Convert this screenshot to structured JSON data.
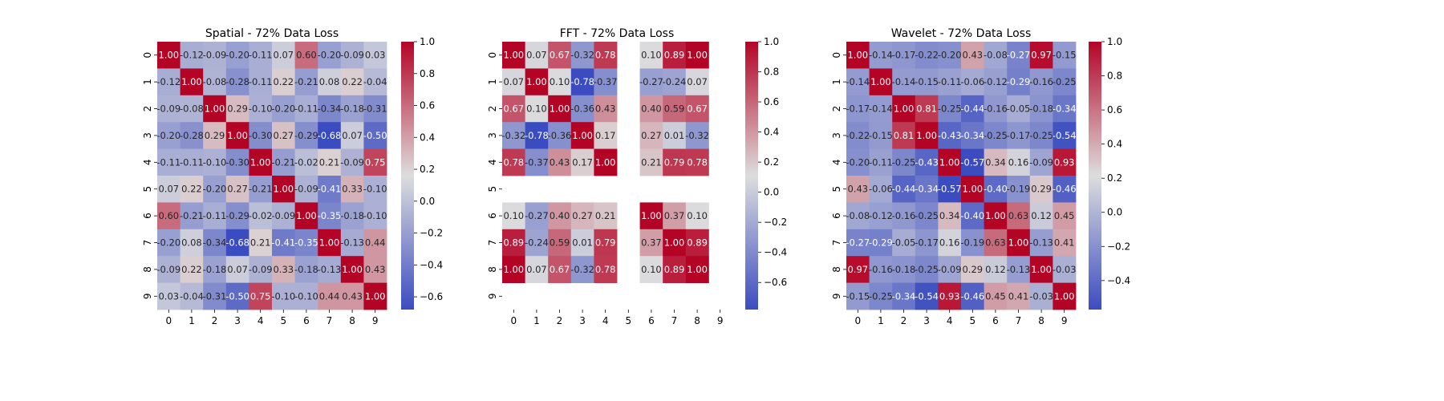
{
  "figure": {
    "background": "#ffffff"
  },
  "colormap": {
    "name": "coolwarm",
    "low": "#3b4cc0",
    "mid": "#dddddd",
    "high": "#b40426"
  },
  "chart_data": [
    {
      "type": "heatmap",
      "title": "Spatial - 72% Data Loss",
      "xlabel": "",
      "ylabel": "",
      "x_labels": [
        "0",
        "1",
        "2",
        "3",
        "4",
        "5",
        "6",
        "7",
        "8",
        "9"
      ],
      "y_labels": [
        "0",
        "1",
        "2",
        "3",
        "4",
        "5",
        "6",
        "7",
        "8",
        "9"
      ],
      "vmin": -0.68,
      "vmax": 1.0,
      "colorbar_ticks": [
        "1.0",
        "0.8",
        "0.6",
        "0.4",
        "0.2",
        "0.0",
        "−0.2",
        "−0.4",
        "−0.6"
      ],
      "cell_labels": [
        [
          "1.00",
          "-0.12",
          "-0.09",
          "-0.20",
          "-0.11",
          "0.07",
          "0.60",
          "-0.20",
          "-0.09",
          "0.03"
        ],
        [
          "-0.12",
          "1.00",
          "-0.08",
          "-0.28",
          "-0.11",
          "0.22",
          "-0.21",
          "0.08",
          "0.22",
          "-0.04"
        ],
        [
          "-0.09",
          "-0.08",
          "1.00",
          "0.29",
          "-0.10",
          "-0.20",
          "-0.11",
          "-0.34",
          "-0.18",
          "-0.31"
        ],
        [
          "-0.20",
          "-0.28",
          "0.29",
          "1.00",
          "-0.30",
          "0.27",
          "-0.29",
          "-0.68",
          "0.07",
          "-0.50"
        ],
        [
          "-0.11",
          "-0.11",
          "-0.10",
          "-0.30",
          "1.00",
          "-0.21",
          "-0.02",
          "0.21",
          "-0.09",
          "0.75"
        ],
        [
          "0.07",
          "0.22",
          "-0.20",
          "0.27",
          "-0.21",
          "1.00",
          "-0.09",
          "-0.41",
          "0.33",
          "-0.10"
        ],
        [
          "0.60",
          "-0.21",
          "-0.11",
          "-0.29",
          "-0.02",
          "-0.09",
          "1.00",
          "-0.35",
          "-0.18",
          "-0.10"
        ],
        [
          "-0.20",
          "0.08",
          "-0.34",
          "-0.68",
          "0.21",
          "-0.41",
          "-0.35",
          "1.00",
          "-0.13",
          "0.44"
        ],
        [
          "-0.09",
          "0.22",
          "-0.18",
          "0.07",
          "-0.09",
          "0.33",
          "-0.18",
          "-0.13",
          "1.00",
          "0.43"
        ],
        [
          "0.03",
          "-0.04",
          "-0.31",
          "-0.50",
          "0.75",
          "-0.10",
          "-0.10",
          "0.44",
          "0.43",
          "1.00"
        ]
      ]
    },
    {
      "type": "heatmap",
      "title": "FFT - 72% Data Loss",
      "xlabel": "",
      "ylabel": "",
      "x_labels": [
        "0",
        "1",
        "2",
        "3",
        "4",
        "5",
        "6",
        "7",
        "8",
        "9"
      ],
      "y_labels": [
        "0",
        "1",
        "2",
        "3",
        "4",
        "5",
        "6",
        "7",
        "8",
        "9"
      ],
      "vmin": -0.78,
      "vmax": 1.0,
      "colorbar_ticks": [
        "1.0",
        "0.8",
        "0.6",
        "0.4",
        "0.2",
        "0.0",
        "−0.2",
        "−0.4",
        "−0.6"
      ],
      "cell_labels": [
        [
          "1.00",
          "0.07",
          "0.67",
          "-0.32",
          "0.78",
          "",
          "0.10",
          "0.89",
          "1.00",
          ""
        ],
        [
          "0.07",
          "1.00",
          "0.10",
          "-0.78",
          "-0.37",
          "",
          "-0.27",
          "-0.24",
          "0.07",
          ""
        ],
        [
          "0.67",
          "0.10",
          "1.00",
          "-0.36",
          "0.43",
          "",
          "0.40",
          "0.59",
          "0.67",
          ""
        ],
        [
          "-0.32",
          "-0.78",
          "-0.36",
          "1.00",
          "0.17",
          "",
          "0.27",
          "0.01",
          "-0.32",
          ""
        ],
        [
          "0.78",
          "-0.37",
          "0.43",
          "0.17",
          "1.00",
          "",
          "0.21",
          "0.79",
          "0.78",
          ""
        ],
        [
          "",
          "",
          "",
          "",
          "",
          "",
          "",
          "",
          "",
          ""
        ],
        [
          "0.10",
          "-0.27",
          "0.40",
          "0.27",
          "0.21",
          "",
          "1.00",
          "0.37",
          "0.10",
          ""
        ],
        [
          "0.89",
          "-0.24",
          "0.59",
          "0.01",
          "0.79",
          "",
          "0.37",
          "1.00",
          "0.89",
          ""
        ],
        [
          "1.00",
          "0.07",
          "0.67",
          "-0.32",
          "0.78",
          "",
          "0.10",
          "0.89",
          "1.00",
          ""
        ],
        [
          "",
          "",
          "",
          "",
          "",
          "",
          "",
          "",
          "",
          ""
        ]
      ]
    },
    {
      "type": "heatmap",
      "title": "Wavelet - 72% Data Loss",
      "xlabel": "",
      "ylabel": "",
      "x_labels": [
        "0",
        "1",
        "2",
        "3",
        "4",
        "5",
        "6",
        "7",
        "8",
        "9"
      ],
      "y_labels": [
        "0",
        "1",
        "2",
        "3",
        "4",
        "5",
        "6",
        "7",
        "8",
        "9"
      ],
      "vmin": -0.57,
      "vmax": 1.0,
      "colorbar_ticks": [
        "1.0",
        "0.8",
        "0.6",
        "0.4",
        "0.2",
        "0.0",
        "−0.2",
        "−0.4"
      ],
      "cell_labels": [
        [
          "1.00",
          "-0.14",
          "-0.17",
          "-0.22",
          "-0.20",
          "0.43",
          "-0.08",
          "-0.27",
          "0.97",
          "-0.15"
        ],
        [
          "-0.14",
          "1.00",
          "-0.14",
          "-0.15",
          "-0.11",
          "-0.06",
          "-0.12",
          "-0.29",
          "-0.16",
          "-0.25"
        ],
        [
          "-0.17",
          "-0.14",
          "1.00",
          "0.81",
          "-0.25",
          "-0.44",
          "-0.16",
          "-0.05",
          "-0.18",
          "-0.34"
        ],
        [
          "-0.22",
          "-0.15",
          "0.81",
          "1.00",
          "-0.43",
          "-0.34",
          "-0.25",
          "-0.17",
          "-0.25",
          "-0.54"
        ],
        [
          "-0.20",
          "-0.11",
          "-0.25",
          "-0.43",
          "1.00",
          "-0.57",
          "0.34",
          "0.16",
          "-0.09",
          "0.93"
        ],
        [
          "0.43",
          "-0.06",
          "-0.44",
          "-0.34",
          "-0.57",
          "1.00",
          "-0.40",
          "-0.19",
          "0.29",
          "-0.46"
        ],
        [
          "-0.08",
          "-0.12",
          "-0.16",
          "-0.25",
          "0.34",
          "-0.40",
          "1.00",
          "0.63",
          "0.12",
          "0.45"
        ],
        [
          "-0.27",
          "-0.29",
          "-0.05",
          "-0.17",
          "0.16",
          "-0.19",
          "0.63",
          "1.00",
          "-0.13",
          "0.41"
        ],
        [
          "0.97",
          "-0.16",
          "-0.18",
          "-0.25",
          "-0.09",
          "0.29",
          "0.12",
          "-0.13",
          "1.00",
          "-0.03"
        ],
        [
          "-0.15",
          "-0.25",
          "-0.34",
          "-0.54",
          "0.93",
          "-0.46",
          "0.45",
          "0.41",
          "-0.03",
          "1.00"
        ]
      ]
    }
  ]
}
